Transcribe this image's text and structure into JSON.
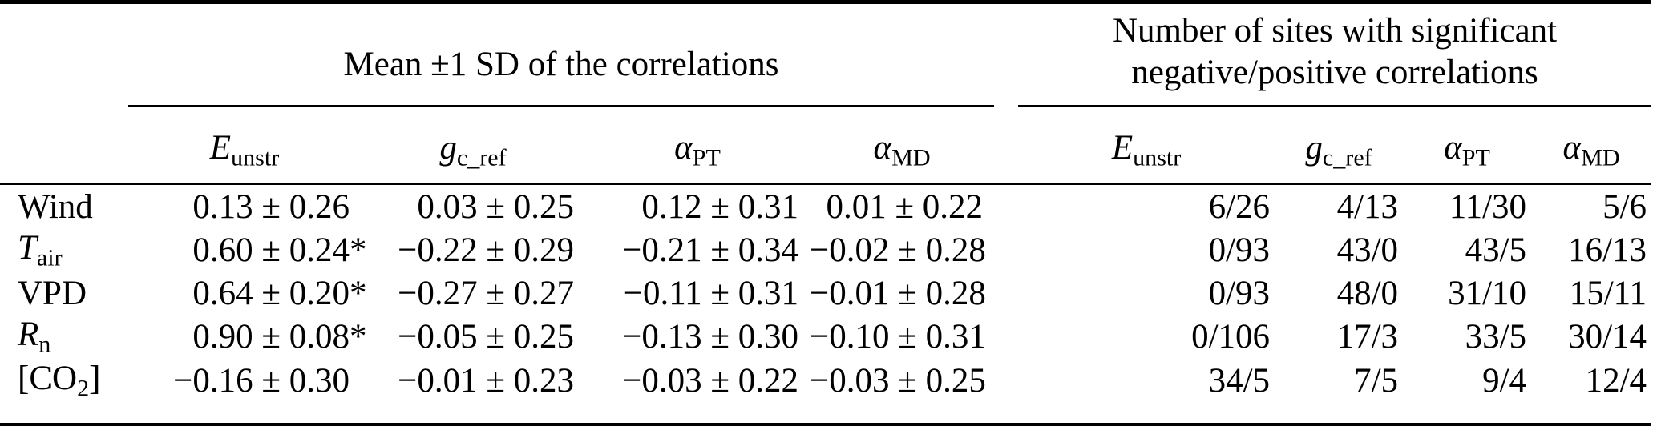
{
  "header": {
    "mean_span": "Mean ±1 SD of the correlations",
    "counts_span_line1": "Number of sites with significant",
    "counts_span_line2": "negative/positive correlations",
    "columns": [
      {
        "id": "e-unstr",
        "segs": [
          {
            "t": "E",
            "s": "it"
          },
          {
            "t": "unstr",
            "s": "sub"
          }
        ]
      },
      {
        "id": "g-c-ref",
        "segs": [
          {
            "t": "g",
            "s": "it"
          },
          {
            "t": "c_ref",
            "s": "sub"
          }
        ]
      },
      {
        "id": "alpha-pt",
        "segs": [
          {
            "t": "α",
            "s": "it"
          },
          {
            "t": "PT",
            "s": "sub"
          }
        ]
      },
      {
        "id": "alpha-md",
        "segs": [
          {
            "t": "α",
            "s": "it"
          },
          {
            "t": "MD",
            "s": "sub"
          }
        ]
      }
    ]
  },
  "rows": [
    {
      "id": "wind",
      "label_segs": [
        {
          "t": "Wind",
          "s": "p"
        }
      ],
      "mean": [
        "0.13 ± 0.26",
        "0.03 ± 0.25",
        "0.12 ± 0.31",
        "0.01 ± 0.22"
      ],
      "counts": [
        "6/26",
        "4/13",
        "11/30",
        "5/6"
      ]
    },
    {
      "id": "t-air",
      "label_segs": [
        {
          "t": "T",
          "s": "it"
        },
        {
          "t": "air",
          "s": "sub"
        }
      ],
      "mean": [
        "0.60 ± 0.24*",
        "−0.22 ± 0.29",
        "−0.21 ± 0.34",
        "−0.02 ± 0.28"
      ],
      "counts": [
        "0/93",
        "43/0",
        "43/5",
        "16/13"
      ]
    },
    {
      "id": "vpd",
      "label_segs": [
        {
          "t": "VPD",
          "s": "p"
        }
      ],
      "mean": [
        "0.64 ± 0.20*",
        "−0.27 ± 0.27",
        "−0.11 ± 0.31",
        "−0.01 ± 0.28"
      ],
      "counts": [
        "0/93",
        "48/0",
        "31/10",
        "15/11"
      ]
    },
    {
      "id": "r-n",
      "label_segs": [
        {
          "t": "R",
          "s": "it"
        },
        {
          "t": "n",
          "s": "sub"
        }
      ],
      "mean": [
        "0.90 ± 0.08*",
        "−0.05 ± 0.25",
        "−0.13 ± 0.30",
        "−0.10 ± 0.31"
      ],
      "counts": [
        "0/106",
        "17/3",
        "33/5",
        "30/14"
      ]
    },
    {
      "id": "co2",
      "label_segs": [
        {
          "t": "[CO",
          "s": "p"
        },
        {
          "t": "2",
          "s": "sub"
        },
        {
          "t": "]",
          "s": "p"
        }
      ],
      "mean": [
        "−0.16 ± 0.30",
        "−0.01 ± 0.23",
        "−0.03 ± 0.22",
        "−0.03 ± 0.25"
      ],
      "counts": [
        "34/5",
        "7/5",
        "9/4",
        "12/4"
      ]
    }
  ],
  "chart_data": {
    "type": "table",
    "title": "",
    "section_headers": [
      "Mean ±1 SD of the correlations",
      "Number of sites with significant negative/positive correlations"
    ],
    "columns": [
      "E_unstr",
      "g_c_ref",
      "α_PT",
      "α_MD",
      "E_unstr",
      "g_c_ref",
      "α_PT",
      "α_MD"
    ],
    "row_labels": [
      "Wind",
      "T_air",
      "VPD",
      "R_n",
      "[CO2]"
    ],
    "cells": [
      [
        "0.13 ± 0.26",
        "0.03 ± 0.25",
        "0.12 ± 0.31",
        "0.01 ± 0.22",
        "6/26",
        "4/13",
        "11/30",
        "5/6"
      ],
      [
        "0.60 ± 0.24*",
        "−0.22 ± 0.29",
        "−0.21 ± 0.34",
        "−0.02 ± 0.28",
        "0/93",
        "43/0",
        "43/5",
        "16/13"
      ],
      [
        "0.64 ± 0.20*",
        "−0.27 ± 0.27",
        "−0.11 ± 0.31",
        "−0.01 ± 0.28",
        "0/93",
        "48/0",
        "31/10",
        "15/11"
      ],
      [
        "0.90 ± 0.08*",
        "−0.05 ± 0.25",
        "−0.13 ± 0.30",
        "−0.10 ± 0.31",
        "0/106",
        "17/3",
        "33/5",
        "30/14"
      ],
      [
        "−0.16 ± 0.30",
        "−0.01 ± 0.23",
        "−0.03 ± 0.22",
        "−0.03 ± 0.25",
        "34/5",
        "7/5",
        "9/4",
        "12/4"
      ]
    ]
  }
}
